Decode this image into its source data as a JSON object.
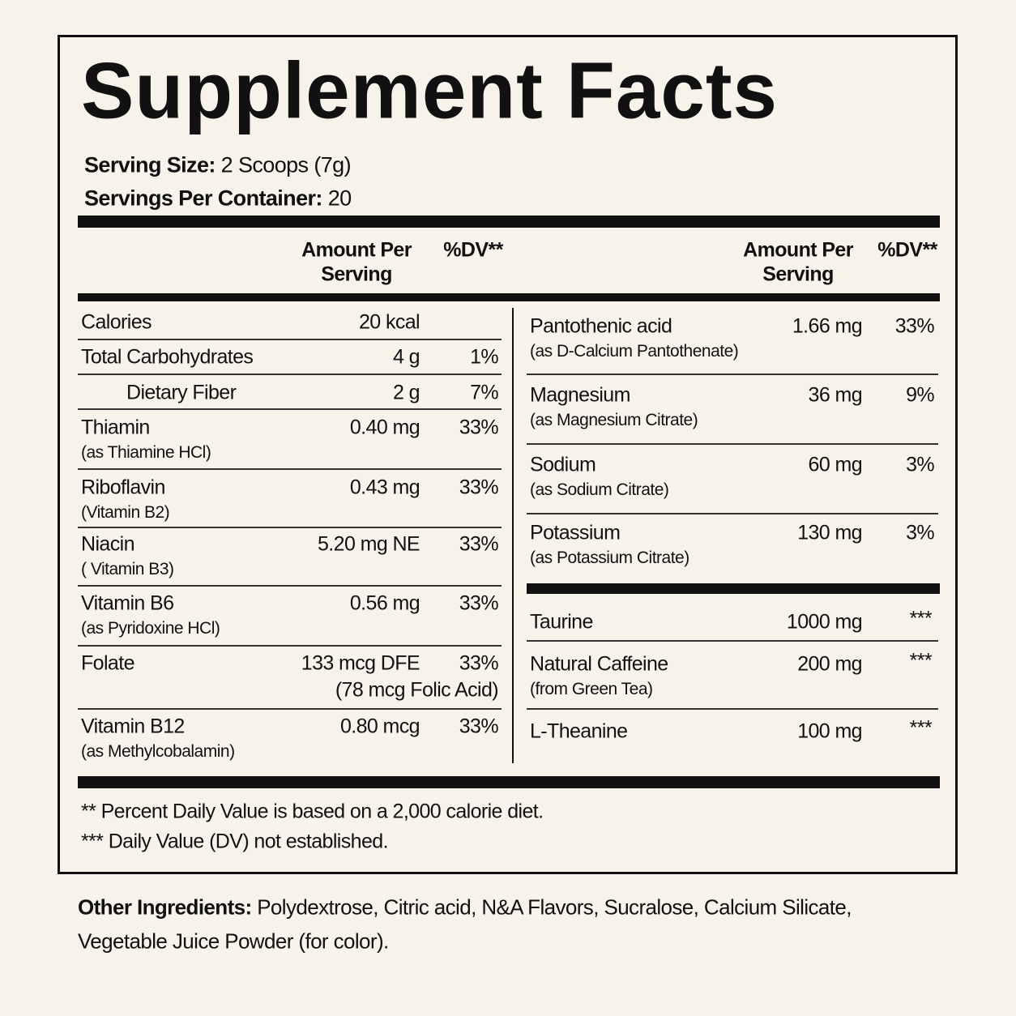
{
  "title": "Supplement Facts",
  "serving": {
    "size_label": "Serving Size:",
    "size_value": "2 Scoops (7g)",
    "per_container_label": "Servings Per Container:",
    "per_container_value": "20"
  },
  "headers": {
    "amount": [
      "Amount Per",
      "Serving"
    ],
    "dv": "%DV**"
  },
  "left_rows": [
    {
      "name": "Calories",
      "amount": "20 kcal"
    },
    {
      "name": "Total Carbohydrates",
      "amount": "4 g",
      "dv": "1%"
    },
    {
      "name": "Dietary Fiber",
      "amount": "2 g",
      "dv": "7%"
    },
    {
      "name": "Thiamin",
      "sub": "(as Thiamine HCl)",
      "amount": "0.40 mg",
      "dv": "33%"
    },
    {
      "name": "Riboflavin",
      "sub": "(Vitamin B2)",
      "amount": "0.43 mg",
      "dv": "33%"
    },
    {
      "name": "Niacin",
      "sub": "( Vitamin B3)",
      "amount": "5.20 mg NE",
      "dv": "33%"
    },
    {
      "name": "Vitamin B6",
      "sub": "(as Pyridoxine HCl)",
      "amount": "0.56 mg",
      "dv": "33%"
    },
    {
      "name": "Folate",
      "amount": "133 mcg DFE",
      "dv": "33%",
      "note": "(78 mcg Folic Acid)"
    },
    {
      "name": "Vitamin B12",
      "sub": "(as Methylcobalamin)",
      "amount": "0.80 mcg",
      "dv": "33%"
    }
  ],
  "right_rows": [
    {
      "name": "Pantothenic acid",
      "sub": "(as D-Calcium Pantothenate)",
      "amount": "1.66 mg",
      "dv": "33%"
    },
    {
      "name": "Magnesium",
      "sub": "(as Magnesium Citrate)",
      "amount": "36 mg",
      "dv": "9%"
    },
    {
      "name": "Sodium",
      "sub": "(as Sodium Citrate)",
      "amount": "60 mg",
      "dv": "3%"
    },
    {
      "name": "Potassium",
      "sub": "(as Potassium Citrate)",
      "amount": "130 mg",
      "dv": "3%"
    }
  ],
  "other_rows": [
    {
      "name": "Taurine",
      "amount": "1000 mg",
      "dv": "***"
    },
    {
      "name": "Natural Caffeine",
      "sub": "(from Green Tea)",
      "amount": "200 mg",
      "dv": "***"
    },
    {
      "name": "L-Theanine",
      "amount": "100 mg",
      "dv": "***"
    }
  ],
  "footnotes": [
    "** Percent Daily Value is based on a 2,000 calorie diet.",
    "*** Daily Value (DV) not established."
  ],
  "other_ingredients": {
    "label": "Other Ingredients:",
    "text": "Polydextrose, Citric acid, N&A Flavors, Sucralose, Calcium Silicate,",
    "text2": "Vegetable Juice Powder (for color)."
  }
}
